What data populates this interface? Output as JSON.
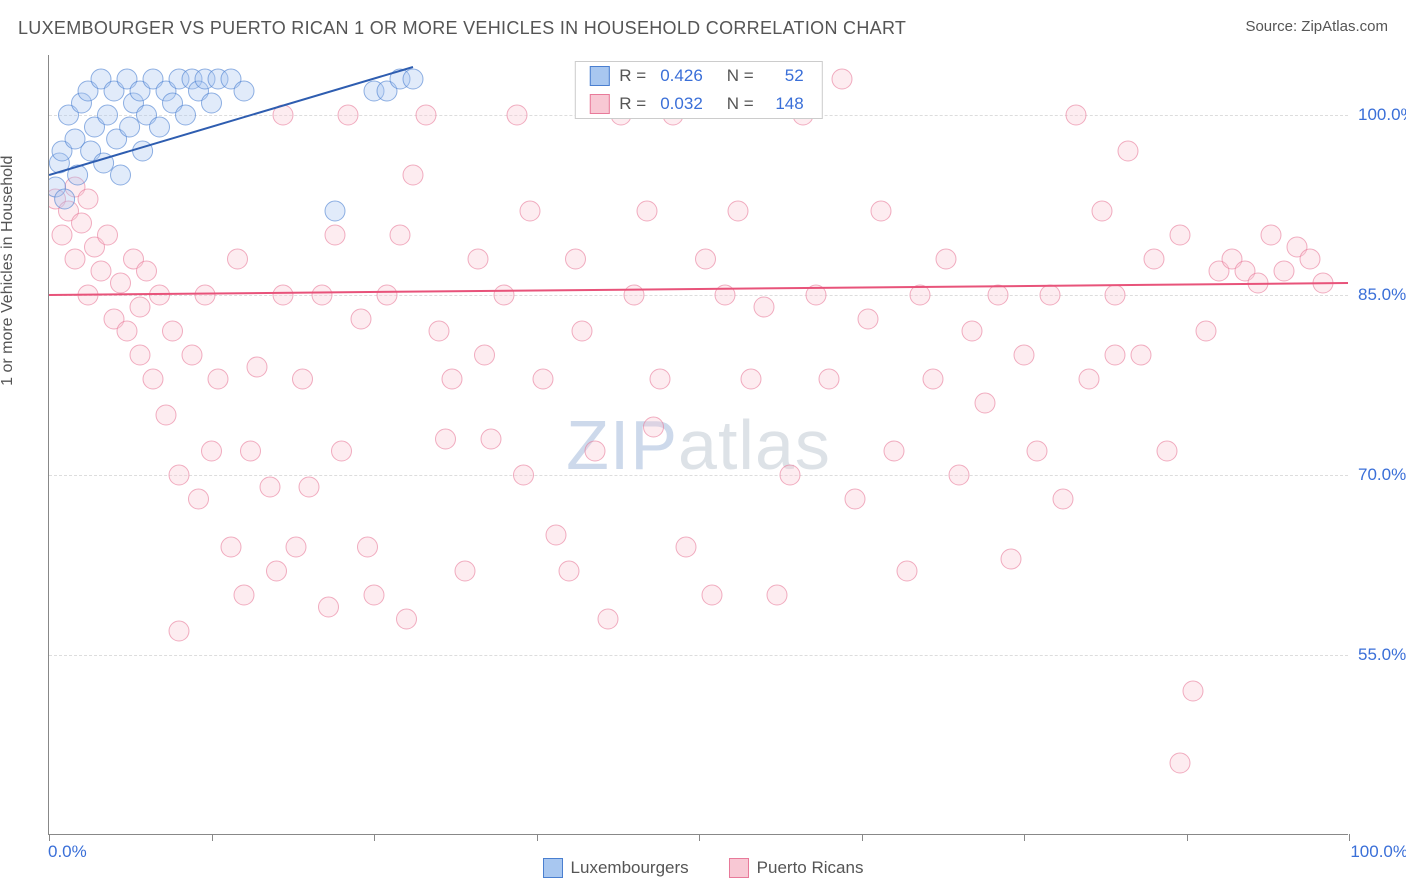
{
  "title": "LUXEMBOURGER VS PUERTO RICAN 1 OR MORE VEHICLES IN HOUSEHOLD CORRELATION CHART",
  "source": "Source: ZipAtlas.com",
  "y_axis_label": "1 or more Vehicles in Household",
  "watermark_a": "ZIP",
  "watermark_b": "atlas",
  "x_axis": {
    "min_label": "0.0%",
    "max_label": "100.0%"
  },
  "chart": {
    "type": "scatter",
    "xlim": [
      0,
      100
    ],
    "ylim": [
      40,
      105
    ],
    "y_ticks": [
      55,
      70,
      85,
      100
    ],
    "y_tick_labels": [
      "55.0%",
      "70.0%",
      "85.0%",
      "100.0%"
    ],
    "x_ticks": [
      0,
      12.5,
      25,
      37.5,
      50,
      62.5,
      75,
      87.5,
      100
    ],
    "background_color": "#ffffff",
    "grid_color": "#dddddd",
    "marker_radius": 10,
    "marker_opacity": 0.35,
    "series": [
      {
        "name": "Luxembourgers",
        "color_fill": "#a8c7f0",
        "color_stroke": "#4a7fd0",
        "r_label": "R = ",
        "r_value": "0.426",
        "n_label": "N = ",
        "n_value": "52",
        "trend": {
          "x1": 0,
          "y1": 95,
          "x2": 28,
          "y2": 104,
          "color": "#2e5db0",
          "width": 2
        },
        "points": [
          [
            0.5,
            94
          ],
          [
            0.8,
            96
          ],
          [
            1,
            97
          ],
          [
            1.2,
            93
          ],
          [
            1.5,
            100
          ],
          [
            2,
            98
          ],
          [
            2.2,
            95
          ],
          [
            2.5,
            101
          ],
          [
            3,
            102
          ],
          [
            3.2,
            97
          ],
          [
            3.5,
            99
          ],
          [
            4,
            103
          ],
          [
            4.2,
            96
          ],
          [
            4.5,
            100
          ],
          [
            5,
            102
          ],
          [
            5.2,
            98
          ],
          [
            5.5,
            95
          ],
          [
            6,
            103
          ],
          [
            6.2,
            99
          ],
          [
            6.5,
            101
          ],
          [
            7,
            102
          ],
          [
            7.2,
            97
          ],
          [
            7.5,
            100
          ],
          [
            8,
            103
          ],
          [
            8.5,
            99
          ],
          [
            9,
            102
          ],
          [
            9.5,
            101
          ],
          [
            10,
            103
          ],
          [
            10.5,
            100
          ],
          [
            11,
            103
          ],
          [
            11.5,
            102
          ],
          [
            12,
            103
          ],
          [
            12.5,
            101
          ],
          [
            13,
            103
          ],
          [
            14,
            103
          ],
          [
            15,
            102
          ],
          [
            22,
            92
          ],
          [
            25,
            102
          ],
          [
            26,
            102
          ],
          [
            27,
            103
          ],
          [
            28,
            103
          ]
        ]
      },
      {
        "name": "Puerto Ricans",
        "color_fill": "#f8c8d4",
        "color_stroke": "#e87a9a",
        "r_label": "R = ",
        "r_value": "0.032",
        "n_label": "N = ",
        "n_value": "148",
        "trend": {
          "x1": 0,
          "y1": 85,
          "x2": 100,
          "y2": 86,
          "color": "#e8537a",
          "width": 2
        },
        "points": [
          [
            0.5,
            93
          ],
          [
            1,
            90
          ],
          [
            1.5,
            92
          ],
          [
            2,
            94
          ],
          [
            2,
            88
          ],
          [
            2.5,
            91
          ],
          [
            3,
            93
          ],
          [
            3,
            85
          ],
          [
            3.5,
            89
          ],
          [
            4,
            87
          ],
          [
            4.5,
            90
          ],
          [
            5,
            83
          ],
          [
            5.5,
            86
          ],
          [
            6,
            82
          ],
          [
            6.5,
            88
          ],
          [
            7,
            84
          ],
          [
            7,
            80
          ],
          [
            7.5,
            87
          ],
          [
            8,
            78
          ],
          [
            8.5,
            85
          ],
          [
            9,
            75
          ],
          [
            9.5,
            82
          ],
          [
            10,
            57
          ],
          [
            10,
            70
          ],
          [
            11,
            80
          ],
          [
            11.5,
            68
          ],
          [
            12,
            85
          ],
          [
            12.5,
            72
          ],
          [
            13,
            78
          ],
          [
            14,
            64
          ],
          [
            14.5,
            88
          ],
          [
            15,
            60
          ],
          [
            15.5,
            72
          ],
          [
            16,
            79
          ],
          [
            17,
            69
          ],
          [
            17.5,
            62
          ],
          [
            18,
            100
          ],
          [
            18,
            85
          ],
          [
            19,
            64
          ],
          [
            19.5,
            78
          ],
          [
            20,
            69
          ],
          [
            21,
            85
          ],
          [
            21.5,
            59
          ],
          [
            22,
            90
          ],
          [
            22.5,
            72
          ],
          [
            23,
            100
          ],
          [
            24,
            83
          ],
          [
            24.5,
            64
          ],
          [
            25,
            60
          ],
          [
            26,
            85
          ],
          [
            27,
            90
          ],
          [
            27.5,
            58
          ],
          [
            28,
            95
          ],
          [
            29,
            100
          ],
          [
            30,
            82
          ],
          [
            30.5,
            73
          ],
          [
            31,
            78
          ],
          [
            32,
            62
          ],
          [
            33,
            88
          ],
          [
            33.5,
            80
          ],
          [
            34,
            73
          ],
          [
            35,
            85
          ],
          [
            36,
            100
          ],
          [
            36.5,
            70
          ],
          [
            37,
            92
          ],
          [
            38,
            78
          ],
          [
            39,
            65
          ],
          [
            40,
            62
          ],
          [
            40.5,
            88
          ],
          [
            41,
            82
          ],
          [
            42,
            72
          ],
          [
            43,
            58
          ],
          [
            44,
            100
          ],
          [
            45,
            85
          ],
          [
            46,
            92
          ],
          [
            46.5,
            74
          ],
          [
            47,
            78
          ],
          [
            48,
            100
          ],
          [
            49,
            64
          ],
          [
            50,
            102
          ],
          [
            50.5,
            88
          ],
          [
            51,
            60
          ],
          [
            52,
            85
          ],
          [
            53,
            92
          ],
          [
            54,
            78
          ],
          [
            55,
            84
          ],
          [
            56,
            60
          ],
          [
            57,
            70
          ],
          [
            58,
            100
          ],
          [
            59,
            85
          ],
          [
            60,
            78
          ],
          [
            61,
            103
          ],
          [
            62,
            68
          ],
          [
            63,
            83
          ],
          [
            64,
            92
          ],
          [
            65,
            72
          ],
          [
            66,
            62
          ],
          [
            67,
            85
          ],
          [
            68,
            78
          ],
          [
            69,
            88
          ],
          [
            70,
            70
          ],
          [
            71,
            82
          ],
          [
            72,
            76
          ],
          [
            73,
            85
          ],
          [
            74,
            63
          ],
          [
            75,
            80
          ],
          [
            76,
            72
          ],
          [
            77,
            85
          ],
          [
            78,
            68
          ],
          [
            79,
            100
          ],
          [
            80,
            78
          ],
          [
            81,
            92
          ],
          [
            82,
            85
          ],
          [
            83,
            97
          ],
          [
            84,
            80
          ],
          [
            85,
            88
          ],
          [
            86,
            72
          ],
          [
            87,
            90
          ],
          [
            88,
            52
          ],
          [
            89,
            82
          ],
          [
            90,
            87
          ],
          [
            91,
            88
          ],
          [
            92,
            87
          ],
          [
            93,
            86
          ],
          [
            94,
            90
          ],
          [
            95,
            87
          ],
          [
            96,
            89
          ],
          [
            97,
            88
          ],
          [
            98,
            86
          ],
          [
            87,
            46
          ],
          [
            82,
            80
          ]
        ]
      }
    ]
  },
  "bottom_legend": [
    {
      "label": "Luxembourgers",
      "fill": "#a8c7f0",
      "stroke": "#4a7fd0"
    },
    {
      "label": "Puerto Ricans",
      "fill": "#f8c8d4",
      "stroke": "#e87a9a"
    }
  ]
}
